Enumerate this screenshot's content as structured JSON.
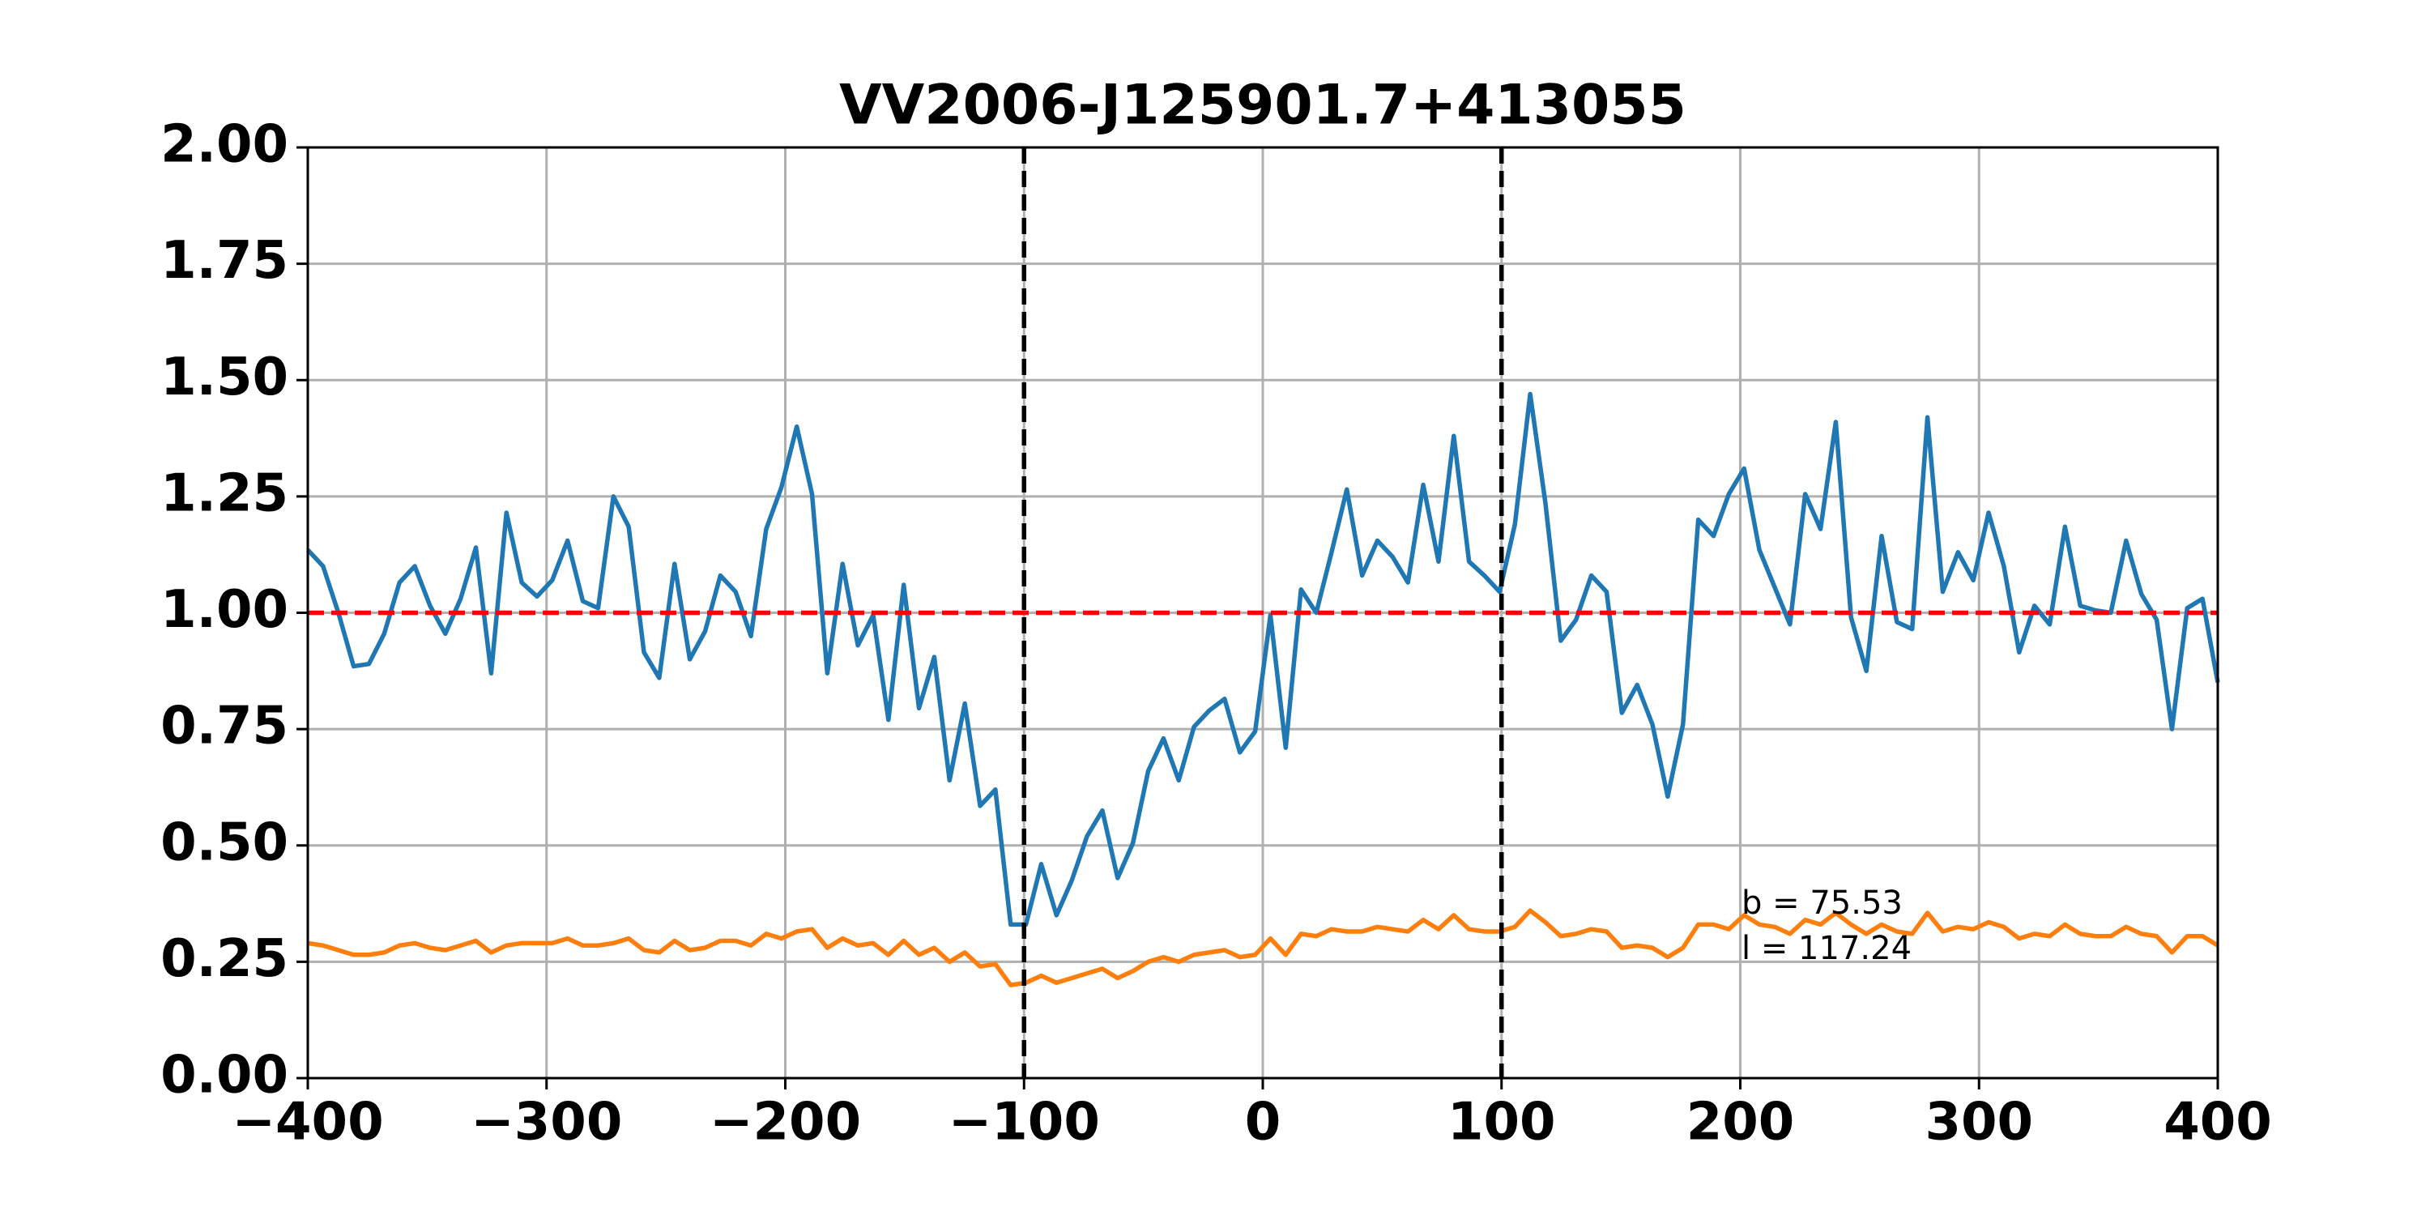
{
  "chart_data": {
    "type": "line",
    "title": "VV2006-J125901.7+413055",
    "x": [
      -400,
      -393.6,
      -387.2,
      -380.8,
      -374.4,
      -368,
      -361.6,
      -355.2,
      -348.8,
      -342.4,
      -336,
      -329.6,
      -323.2,
      -316.8,
      -310.4,
      -304,
      -297.6,
      -291.2,
      -284.8,
      -278.4,
      -272,
      -265.6,
      -259.2,
      -252.8,
      -246.4,
      -240,
      -233.6,
      -227.2,
      -220.8,
      -214.4,
      -208,
      -201.6,
      -195.2,
      -188.8,
      -182.4,
      -176,
      -169.6,
      -163.2,
      -156.8,
      -150.4,
      -144,
      -137.6,
      -131.2,
      -124.8,
      -118.4,
      -112,
      -105.6,
      -99.2,
      -92.8,
      -86.4,
      -80,
      -73.6,
      -67.2,
      -60.8,
      -54.4,
      -48,
      -41.6,
      -35.2,
      -28.8,
      -22.4,
      -16,
      -9.6,
      -3.2,
      3.2,
      9.6,
      16,
      22.4,
      28.8,
      35.2,
      41.6,
      48,
      54.4,
      60.8,
      67.2,
      73.6,
      80,
      86.4,
      92.8,
      99.2,
      105.6,
      112,
      118.4,
      124.8,
      131.2,
      137.6,
      144,
      150.4,
      156.8,
      163.2,
      169.6,
      176,
      182.4,
      188.8,
      195.2,
      201.6,
      208,
      214.4,
      220.8,
      227.2,
      233.6,
      240,
      246.4,
      252.8,
      259.2,
      265.6,
      272,
      278.4,
      284.8,
      291.2,
      297.6,
      304,
      310.4,
      316.8,
      323.2,
      329.6,
      336,
      342.4,
      348.8,
      355.2,
      361.6,
      368,
      374.4,
      380.8,
      387.2,
      393.6,
      400
    ],
    "series": [
      {
        "color": "#1f77b4",
        "values": [
          1.135,
          1.1,
          1.0,
          0.885,
          0.89,
          0.955,
          1.065,
          1.1,
          1.015,
          0.955,
          1.03,
          1.14,
          0.87,
          1.215,
          1.065,
          1.035,
          1.07,
          1.155,
          1.025,
          1.01,
          1.25,
          1.185,
          0.915,
          0.86,
          1.105,
          0.9,
          0.96,
          1.08,
          1.045,
          0.95,
          1.18,
          1.27,
          1.4,
          1.255,
          0.87,
          1.105,
          0.93,
          0.995,
          0.77,
          1.06,
          0.795,
          0.905,
          0.64,
          0.805,
          0.585,
          0.62,
          0.33,
          0.33,
          0.46,
          0.35,
          0.425,
          0.52,
          0.575,
          0.43,
          0.505,
          0.66,
          0.73,
          0.64,
          0.755,
          0.79,
          0.815,
          0.7,
          0.745,
          0.995,
          0.71,
          1.05,
          1.0,
          1.13,
          1.265,
          1.08,
          1.155,
          1.12,
          1.065,
          1.275,
          1.11,
          1.38,
          1.11,
          1.08,
          1.045,
          1.19,
          1.47,
          1.235,
          0.94,
          0.985,
          1.08,
          1.045,
          0.785,
          0.845,
          0.76,
          0.605,
          0.76,
          1.2,
          1.165,
          1.255,
          1.31,
          1.135,
          1.055,
          0.975,
          1.255,
          1.18,
          1.41,
          0.99,
          0.875,
          1.165,
          0.98,
          0.965,
          1.42,
          1.045,
          1.13,
          1.07,
          1.215,
          1.1,
          0.915,
          1.015,
          0.975,
          1.185,
          1.015,
          1.005,
          1.0,
          1.155,
          1.04,
          0.985,
          0.75,
          1.01,
          1.03,
          0.85
        ]
      },
      {
        "color": "#ff7f0e",
        "values": [
          0.29,
          0.285,
          0.275,
          0.265,
          0.265,
          0.27,
          0.285,
          0.29,
          0.28,
          0.275,
          0.285,
          0.295,
          0.27,
          0.285,
          0.29,
          0.29,
          0.29,
          0.3,
          0.285,
          0.285,
          0.29,
          0.3,
          0.275,
          0.27,
          0.295,
          0.275,
          0.28,
          0.295,
          0.295,
          0.285,
          0.31,
          0.3,
          0.315,
          0.32,
          0.28,
          0.3,
          0.285,
          0.29,
          0.265,
          0.295,
          0.265,
          0.28,
          0.25,
          0.27,
          0.24,
          0.245,
          0.2,
          0.205,
          0.22,
          0.205,
          0.215,
          0.225,
          0.235,
          0.215,
          0.23,
          0.25,
          0.26,
          0.25,
          0.265,
          0.27,
          0.275,
          0.26,
          0.265,
          0.3,
          0.265,
          0.31,
          0.305,
          0.32,
          0.315,
          0.315,
          0.325,
          0.32,
          0.315,
          0.34,
          0.32,
          0.35,
          0.32,
          0.315,
          0.315,
          0.325,
          0.36,
          0.335,
          0.305,
          0.31,
          0.32,
          0.315,
          0.28,
          0.285,
          0.28,
          0.26,
          0.28,
          0.33,
          0.33,
          0.32,
          0.35,
          0.33,
          0.325,
          0.31,
          0.34,
          0.33,
          0.355,
          0.33,
          0.31,
          0.33,
          0.315,
          0.31,
          0.355,
          0.315,
          0.325,
          0.32,
          0.335,
          0.325,
          0.3,
          0.31,
          0.305,
          0.33,
          0.31,
          0.305,
          0.305,
          0.325,
          0.31,
          0.305,
          0.27,
          0.305,
          0.305,
          0.285
        ]
      }
    ],
    "hlines": [
      {
        "value": 1,
        "color": "#ff0000"
      }
    ],
    "vlines": [
      {
        "value": -100,
        "color": "#000000"
      },
      {
        "value": 100,
        "color": "#000000"
      }
    ],
    "annotations": [
      "b = 75.53",
      "l = 117.24"
    ],
    "xlim": [
      -400,
      400
    ],
    "xticks": [
      {
        "value": -400,
        "label": "−400"
      },
      {
        "value": -300,
        "label": "−300"
      },
      {
        "value": -200,
        "label": "−200"
      },
      {
        "value": -100,
        "label": "−100"
      },
      0,
      100,
      200,
      300,
      400
    ],
    "ylim": [
      0,
      2
    ],
    "yticks": [
      {
        "value": 0,
        "label": "0.00"
      },
      0.25,
      {
        "value": 0.5,
        "label": "0.50"
      },
      0.75,
      {
        "value": 1,
        "label": "1.00"
      },
      1.25,
      {
        "value": 1.5,
        "label": "1.50"
      },
      1.75,
      {
        "value": 2,
        "label": "2.00"
      }
    ],
    "grid": true
  }
}
